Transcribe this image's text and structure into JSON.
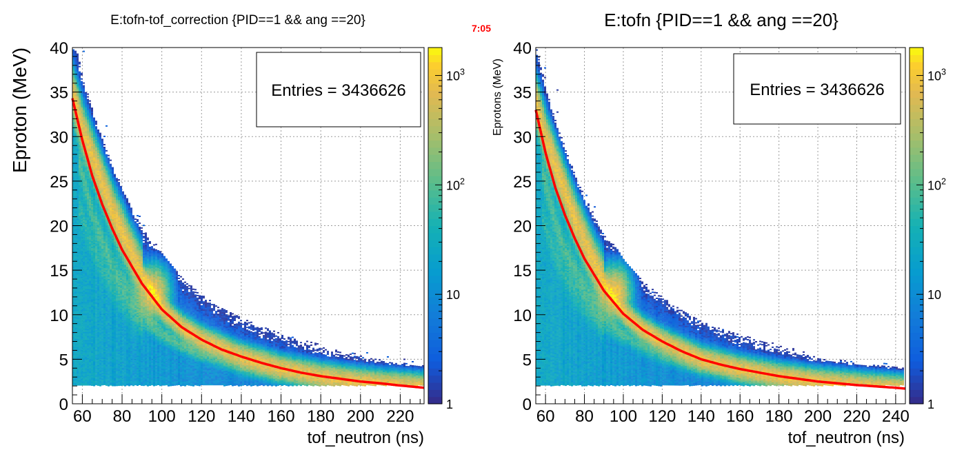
{
  "stamp_text": "7:05",
  "chart_data": [
    {
      "type": "heatmap",
      "title": "E:tofn-tof_correction {PID==1 && ang ==20}",
      "xlabel": "tof_neutron (ns)",
      "ylabel": "Eproton (MeV)",
      "xlim": [
        55,
        232
      ],
      "ylim": [
        0,
        40
      ],
      "xticks": [
        60,
        80,
        100,
        120,
        140,
        160,
        180,
        200,
        220
      ],
      "yticks": [
        0,
        5,
        10,
        15,
        20,
        25,
        30,
        35,
        40
      ],
      "zscale": "log",
      "zlim": [
        1,
        1800
      ],
      "zticks": [
        {
          "value": 1,
          "label": "1"
        },
        {
          "value": 10,
          "label": "10"
        },
        {
          "value": 100,
          "label": "10^2"
        },
        {
          "value": 1000,
          "label": "10^3"
        }
      ],
      "stats": "Entries = 3436626",
      "grid": true,
      "fit_curve": {
        "color": "#ff0000",
        "x": [
          55,
          60,
          65,
          70,
          75,
          80,
          90,
          100,
          110,
          120,
          130,
          140,
          150,
          160,
          170,
          180,
          190,
          200,
          210,
          220,
          232
        ],
        "y": [
          34.3,
          29.6,
          25.6,
          22.4,
          19.7,
          17.3,
          13.5,
          10.6,
          8.6,
          7.2,
          6.1,
          5.3,
          4.6,
          4.0,
          3.5,
          3.1,
          2.8,
          2.5,
          2.3,
          2.05,
          1.8
        ]
      },
      "ridges": [
        {
          "x": [
            55,
            60,
            65,
            70,
            75,
            80,
            85,
            90,
            95,
            100,
            110,
            120,
            140,
            160,
            180,
            200,
            220,
            232
          ],
          "y": [
            34.5,
            30.5,
            27.5,
            24.5,
            21.5,
            19,
            16.5,
            14.3,
            12.5,
            10.6,
            8.6,
            7.2,
            5.3,
            4.0,
            3.1,
            2.5,
            2.1,
            1.9
          ],
          "width": 6,
          "z": 800
        },
        {
          "x": [
            58,
            65,
            70,
            75,
            80,
            85,
            90,
            95,
            100,
            110,
            120,
            140,
            160
          ],
          "y": [
            27,
            21,
            18,
            15.5,
            13.5,
            11.8,
            10.3,
            9,
            8,
            6.6,
            5.6,
            4.2,
            3.3
          ],
          "width": 4,
          "z": 60
        },
        {
          "x": [
            58,
            65,
            70,
            75,
            80,
            90,
            100,
            120
          ],
          "y": [
            22,
            17.5,
            15,
            13,
            11.5,
            9,
            7.5,
            5.5
          ],
          "width": 3,
          "z": 30
        }
      ]
    },
    {
      "type": "heatmap",
      "title": "E:tofn {PID==1 && ang ==20}",
      "xlabel": "tof_neutron (ns)",
      "ylabel": "Eprotons (MeV)",
      "xlim": [
        55,
        245
      ],
      "ylim": [
        0,
        40
      ],
      "xticks": [
        60,
        80,
        100,
        120,
        140,
        160,
        180,
        200,
        220,
        240
      ],
      "yticks": [
        0,
        5,
        10,
        15,
        20,
        25,
        30,
        35,
        40
      ],
      "zscale": "log",
      "zlim": [
        1,
        1800
      ],
      "zticks": [
        {
          "value": 1,
          "label": "1"
        },
        {
          "value": 10,
          "label": "10"
        },
        {
          "value": 100,
          "label": "10^2"
        },
        {
          "value": 1000,
          "label": "10^3"
        }
      ],
      "stats": "Entries = 3436626",
      "grid": true,
      "fit_curve": {
        "color": "#ff0000",
        "x": [
          55,
          60,
          65,
          70,
          75,
          80,
          90,
          100,
          110,
          120,
          130,
          140,
          150,
          160,
          180,
          200,
          220,
          240,
          245
        ],
        "y": [
          33,
          28.2,
          24.3,
          21.2,
          18.6,
          16.3,
          12.7,
          10.1,
          8.3,
          7.0,
          5.9,
          5.0,
          4.4,
          3.9,
          3.1,
          2.5,
          2.1,
          1.8,
          1.7
        ]
      },
      "ridges": [
        {
          "x": [
            55,
            60,
            65,
            70,
            75,
            80,
            85,
            90,
            95,
            100,
            110,
            120,
            140,
            160,
            180,
            200,
            220,
            245
          ],
          "y": [
            33.5,
            29.5,
            26.5,
            23.5,
            20.5,
            18,
            15.5,
            13.5,
            11.8,
            10.2,
            8.3,
            7.0,
            5.0,
            3.9,
            3.1,
            2.5,
            2.1,
            1.7
          ],
          "width": 6,
          "z": 800
        },
        {
          "x": [
            58,
            65,
            70,
            75,
            80,
            85,
            90,
            100,
            110,
            120,
            140
          ],
          "y": [
            26,
            20,
            17,
            14.8,
            13,
            11.3,
            9.9,
            7.8,
            6.4,
            5.4,
            4.1
          ],
          "width": 4,
          "z": 60
        },
        {
          "x": [
            58,
            65,
            70,
            75,
            80,
            90,
            100
          ],
          "y": [
            21,
            16.5,
            14.2,
            12.4,
            11,
            8.7,
            7.2
          ],
          "width": 3,
          "z": 30
        }
      ]
    }
  ]
}
